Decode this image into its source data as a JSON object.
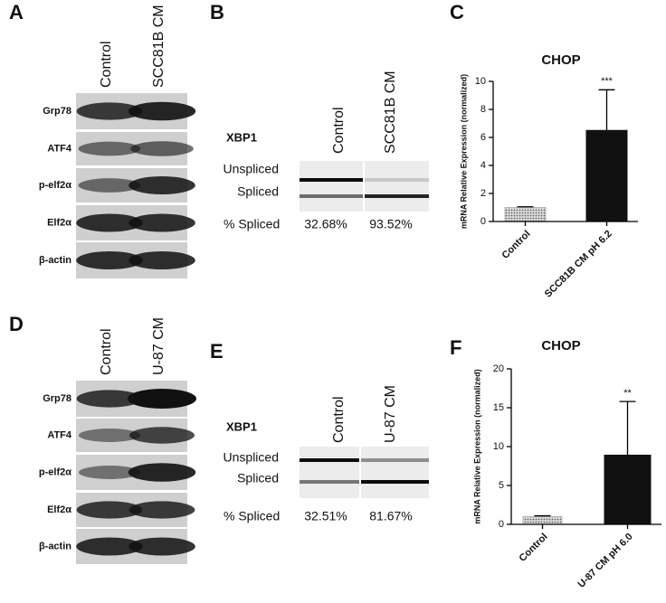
{
  "panels": [
    {
      "label": "A",
      "columns": [
        "Control",
        "SCC81B CM"
      ],
      "rows": [
        "Grp78",
        "ATF4",
        "p-elf2α",
        "Elf2α",
        "β-actin"
      ]
    },
    {
      "label": "B",
      "gene": "XBP1",
      "columns": [
        "Control",
        "SCC81B CM"
      ],
      "bands": [
        "Unspliced",
        "Spliced"
      ],
      "measure": "% Spliced",
      "percent": [
        "32.68%",
        "93.52%"
      ]
    },
    {
      "label": "D",
      "columns": [
        "Control",
        "U-87 CM"
      ],
      "rows": [
        "Grp78",
        "ATF4",
        "p-elf2α",
        "Elf2α",
        "β-actin"
      ]
    },
    {
      "label": "E",
      "gene": "XBP1",
      "columns": [
        "Control",
        "U-87  CM"
      ],
      "bands": [
        "Unspliced",
        "Spliced"
      ],
      "measure": "% Spliced",
      "percent": [
        "32.51%",
        "81.67%"
      ]
    }
  ],
  "chart_data": [
    {
      "type": "bar",
      "label": "C",
      "title": "CHOP",
      "y_label": "mRNA Relative Expression (normalized)",
      "categories": [
        "Control",
        "SCC81B CM pH 6.2"
      ],
      "values": [
        1,
        6.5
      ],
      "errors": [
        0.05,
        2.9
      ],
      "annotations": [
        null,
        "***"
      ],
      "colors": [
        "#b5b5b5",
        "#111111"
      ],
      "ylim": [
        0,
        10
      ],
      "yticks": [
        0,
        2,
        4,
        6,
        8,
        10
      ]
    },
    {
      "type": "bar",
      "label": "F",
      "title": "CHOP",
      "y_label": "mRNA Relative Expression (normalized)",
      "categories": [
        "Control",
        "U-87 CM pH 6.0"
      ],
      "values": [
        1,
        8.9
      ],
      "errors": [
        0.1,
        6.9
      ],
      "annotations": [
        null,
        "**"
      ],
      "colors": [
        "#b5b5b5",
        "#111111"
      ],
      "ylim": [
        0,
        20
      ],
      "yticks": [
        0,
        5,
        10,
        15,
        20
      ]
    }
  ]
}
